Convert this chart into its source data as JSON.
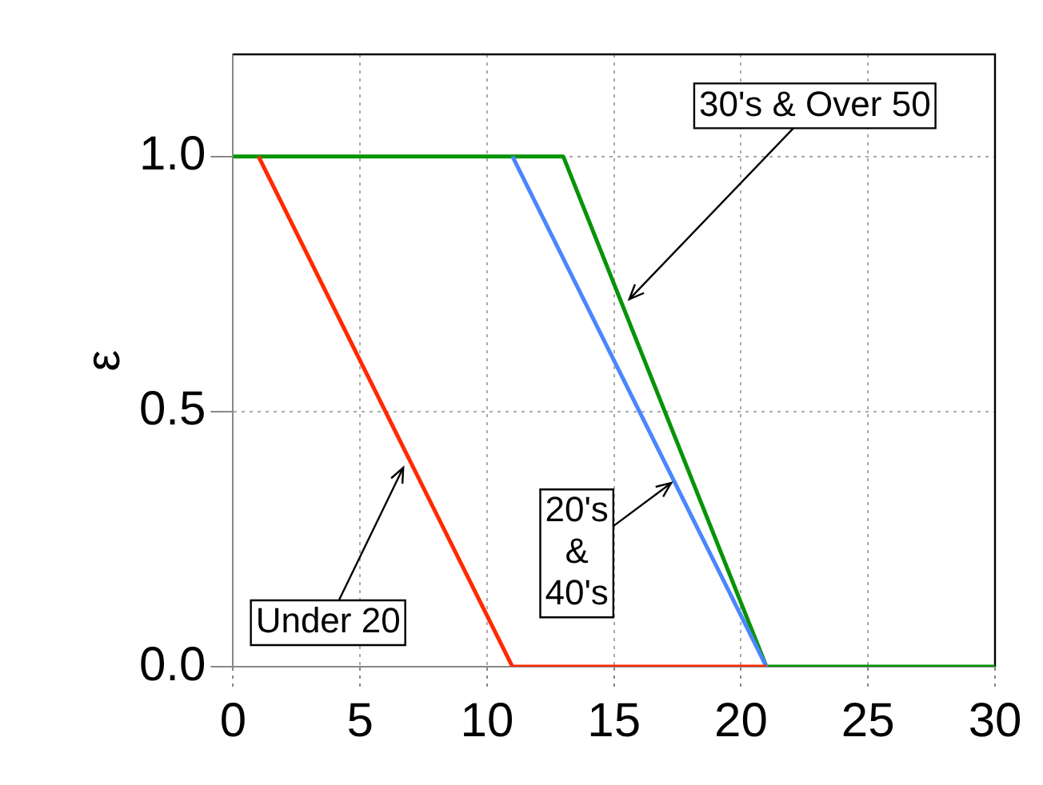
{
  "chart_data": {
    "type": "line",
    "ylabel": "ε",
    "xlim": [
      0,
      30
    ],
    "ylim": [
      0,
      1.2
    ],
    "xticks": [
      0,
      5,
      10,
      15,
      20,
      25,
      30
    ],
    "yticks": [
      {
        "value": 0,
        "label": "0.0"
      },
      {
        "value": 0.5,
        "label": "0.5"
      },
      {
        "value": 1,
        "label": "1.0"
      }
    ],
    "grid": true,
    "legend": false,
    "marker": "none",
    "line_style": "solid",
    "series": [
      {
        "color": "#ff2a00",
        "x": [
          1,
          11,
          21
        ],
        "values": [
          1,
          0,
          0
        ]
      },
      {
        "color": "#4a86ff",
        "x": [
          11,
          21
        ],
        "values": [
          1,
          0
        ]
      },
      {
        "color": "#079407",
        "x": [
          0,
          13,
          21,
          30
        ],
        "values": [
          1,
          1,
          0,
          0
        ]
      }
    ],
    "annotations": [
      {
        "text": "Under 20",
        "x": 6.7,
        "y": 0.39
      },
      {
        "text": "20's\n&\n40's",
        "x": 17.25,
        "y": 0.36
      },
      {
        "text": "30's & Over 50",
        "x": 15.6,
        "y": 0.72
      }
    ]
  }
}
